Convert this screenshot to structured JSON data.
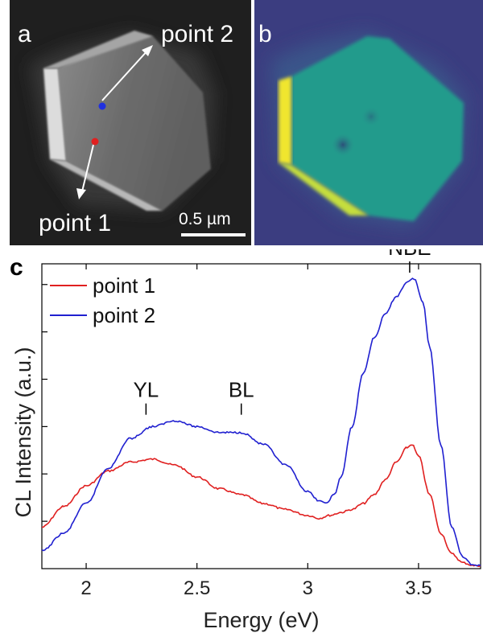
{
  "figure": {
    "panel_a": {
      "letter": "a",
      "point1_label": "point 1",
      "point2_label": "point 2",
      "scale_bar": "0.5 µm",
      "point1_color": "#e02020",
      "point2_color": "#2030e0"
    },
    "panel_b": {
      "letter": "b"
    },
    "panel_c": {
      "letter": "c"
    }
  },
  "chart_data": {
    "type": "line",
    "xlabel": "Energy (eV)",
    "ylabel": "CL Intensity (a.u.)",
    "xlim": [
      1.8,
      3.78
    ],
    "ylim": [
      0,
      1.03
    ],
    "xticks": [
      "2",
      "2.5",
      "3",
      "3.5"
    ],
    "y_tick_labels_shown": false,
    "grid": false,
    "legend_position": "top-left",
    "annotations": [
      {
        "text": "YL",
        "x": 2.27
      },
      {
        "text": "BL",
        "x": 2.7
      },
      {
        "text": "NBE",
        "x": 3.46
      }
    ],
    "series": [
      {
        "name": "point 1",
        "color": "#e02020",
        "x": [
          1.8,
          1.9,
          2.0,
          2.1,
          2.2,
          2.3,
          2.4,
          2.5,
          2.6,
          2.7,
          2.8,
          2.9,
          3.0,
          3.05,
          3.1,
          3.15,
          3.2,
          3.25,
          3.3,
          3.35,
          3.4,
          3.45,
          3.47,
          3.5,
          3.55,
          3.6,
          3.65,
          3.7,
          3.75,
          3.78
        ],
        "y": [
          0.14,
          0.21,
          0.28,
          0.33,
          0.36,
          0.37,
          0.35,
          0.31,
          0.27,
          0.25,
          0.22,
          0.2,
          0.18,
          0.17,
          0.18,
          0.19,
          0.2,
          0.22,
          0.25,
          0.3,
          0.36,
          0.41,
          0.42,
          0.38,
          0.25,
          0.12,
          0.05,
          0.02,
          0.01,
          0.01
        ]
      },
      {
        "name": "point 2",
        "color": "#2020d0",
        "x": [
          1.8,
          1.9,
          2.0,
          2.1,
          2.2,
          2.3,
          2.4,
          2.5,
          2.6,
          2.7,
          2.8,
          2.9,
          3.0,
          3.05,
          3.08,
          3.12,
          3.15,
          3.2,
          3.25,
          3.3,
          3.35,
          3.4,
          3.45,
          3.48,
          3.52,
          3.55,
          3.6,
          3.65,
          3.7,
          3.75,
          3.78
        ],
        "y": [
          0.06,
          0.12,
          0.22,
          0.34,
          0.44,
          0.48,
          0.5,
          0.48,
          0.46,
          0.46,
          0.42,
          0.35,
          0.26,
          0.23,
          0.22,
          0.25,
          0.31,
          0.48,
          0.66,
          0.78,
          0.86,
          0.92,
          0.97,
          0.98,
          0.9,
          0.75,
          0.42,
          0.14,
          0.04,
          0.01,
          0.01
        ]
      }
    ]
  }
}
